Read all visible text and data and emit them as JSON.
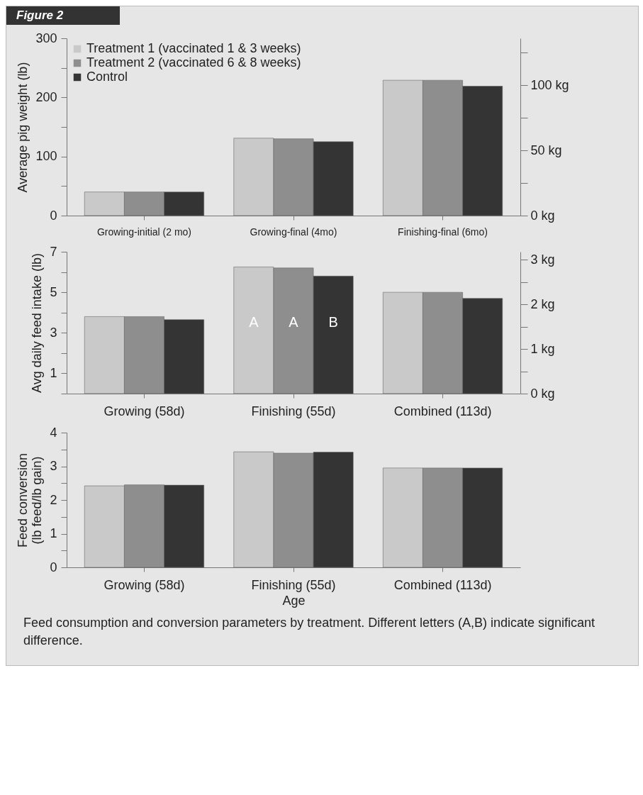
{
  "chart_data": [
    {
      "type": "bar",
      "title": "Figure 2",
      "ylabel": "Average pig weight (lb)",
      "categories": [
        "Growing-initial (2 mo)",
        "Growing-final (4mo)",
        "Finishing-final (6mo)"
      ],
      "series": [
        {
          "name": "Treatment 1 (vaccinated 1 & 3 weeks)",
          "color": "#c9c9c9",
          "values": [
            40,
            131,
            229
          ]
        },
        {
          "name": "Treatment 2 (vaccinated 6 & 8 weeks)",
          "color": "#8e8e8e",
          "values": [
            40,
            130,
            229
          ]
        },
        {
          "name": "Control",
          "color": "#343434",
          "values": [
            40,
            125,
            219
          ]
        }
      ],
      "ylim": [
        0,
        300
      ],
      "yticks": [
        0,
        {
          "value": 50,
          "label": null
        },
        100,
        {
          "value": 150,
          "label": null
        },
        200,
        {
          "value": 250,
          "label": null
        },
        300
      ],
      "y2lim": [
        0,
        136
      ],
      "y2ticks": [
        {
          "value": 0,
          "label": "0 kg"
        },
        {
          "value": 25,
          "label": null
        },
        {
          "value": 50,
          "label": "50 kg"
        },
        {
          "value": 75,
          "label": null
        },
        {
          "value": 100,
          "label": "100 kg"
        },
        {
          "value": 125,
          "label": null
        }
      ],
      "legend": "top left",
      "grid": false
    },
    {
      "type": "bar",
      "ylabel": "Avg daily feed intake (lb)",
      "categories": [
        "Growing (58d)",
        "Finishing (55d)",
        "Combined (113d)"
      ],
      "series": [
        {
          "color": "#c9c9c9",
          "values": [
            3.8,
            6.25,
            5.0
          ]
        },
        {
          "color": "#8e8e8e",
          "values": [
            3.8,
            6.2,
            5.0
          ]
        },
        {
          "color": "#343434",
          "values": [
            3.65,
            5.8,
            4.7
          ]
        }
      ],
      "ylim": [
        0,
        7
      ],
      "yticks": [
        {
          "value": 0,
          "label": null
        },
        1,
        {
          "value": 2,
          "label": null
        },
        3,
        {
          "value": 4,
          "label": null
        },
        5,
        {
          "value": 6,
          "label": null
        },
        7
      ],
      "y2lim": [
        0,
        3.18
      ],
      "y2ticks": [
        {
          "value": 0,
          "label": "0 kg"
        },
        {
          "value": 0.5,
          "label": null
        },
        {
          "value": 1,
          "label": "1 kg"
        },
        {
          "value": 1.5,
          "label": null
        },
        {
          "value": 2,
          "label": "2 kg"
        },
        {
          "value": 2.5,
          "label": null
        },
        {
          "value": 3,
          "label": "3 kg"
        }
      ],
      "annotations": [
        "A",
        "A",
        "B"
      ],
      "legend": false,
      "grid": false
    },
    {
      "type": "bar",
      "ylabel": "Feed conversion (lb feed/lb gain)",
      "xlabel": "Age",
      "categories": [
        "Growing (58d)",
        "Finishing (55d)",
        "Combined (113d)"
      ],
      "series": [
        {
          "color": "#c9c9c9",
          "values": [
            2.42,
            3.43,
            2.95
          ]
        },
        {
          "color": "#8e8e8e",
          "values": [
            2.45,
            3.39,
            2.95
          ]
        },
        {
          "color": "#343434",
          "values": [
            2.44,
            3.42,
            2.95
          ]
        }
      ],
      "ylim": [
        0,
        4
      ],
      "yticks": [
        0,
        {
          "value": 0.5,
          "label": null
        },
        1,
        {
          "value": 1.5,
          "label": null
        },
        2,
        {
          "value": 2.5,
          "label": null
        },
        3,
        {
          "value": 3.5,
          "label": null
        },
        4
      ],
      "annotations": [
        "Feed consumption and conversion parameters by treatment. Different letters (A,B) indicate significant difference."
      ],
      "legend": false,
      "grid": false
    }
  ]
}
